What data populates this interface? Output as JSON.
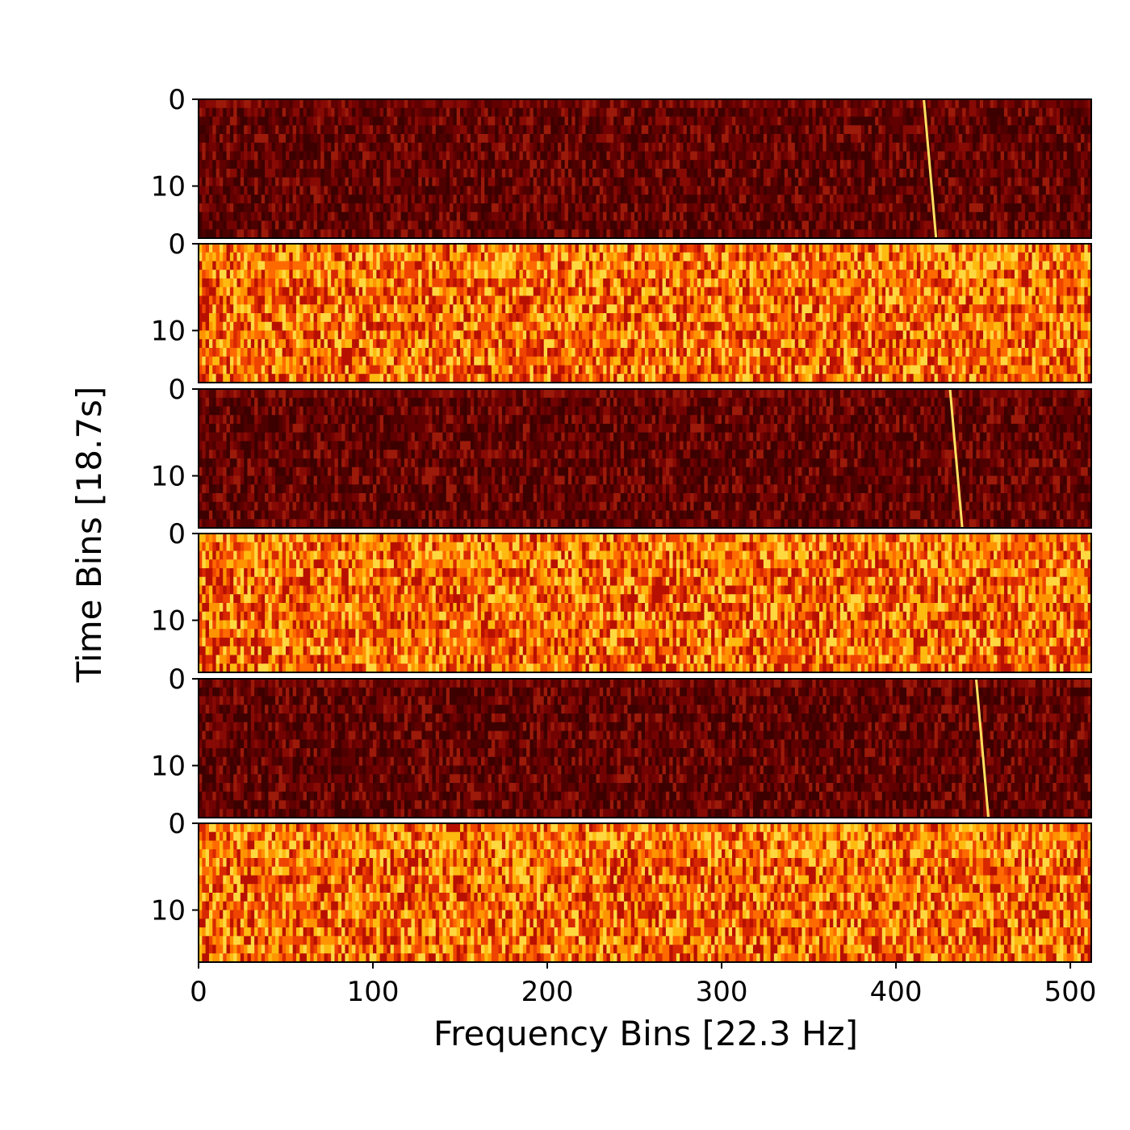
{
  "chart_data": {
    "type": "heatmap",
    "title": "",
    "xlabel": "Frequency Bins [22.3 Hz]",
    "ylabel": "Time Bins [18.7s]",
    "xlim": [
      0,
      512
    ],
    "ylim": [
      0,
      16
    ],
    "x_ticks": [
      0,
      100,
      200,
      300,
      400,
      500
    ],
    "y_ticks": [
      0,
      10
    ],
    "colormap": "hot",
    "panels": [
      {
        "name": "",
        "background": "dark",
        "signal": {
          "freq_start": 416,
          "freq_end": 423
        }
      },
      {
        "name": "",
        "background": "bright",
        "signal": null
      },
      {
        "name": "",
        "background": "dark",
        "signal": {
          "freq_start": 431,
          "freq_end": 438
        }
      },
      {
        "name": "",
        "background": "bright",
        "signal": null
      },
      {
        "name": "",
        "background": "dark",
        "signal": {
          "freq_start": 446,
          "freq_end": 453
        }
      },
      {
        "name": "",
        "background": "bright",
        "signal": null
      }
    ],
    "colors": {
      "dark_palette": [
        "#3d0000",
        "#4f0000",
        "#610000",
        "#730303",
        "#870a05",
        "#9c1a0a"
      ],
      "bright_palette": [
        "#b81000",
        "#d82800",
        "#ee4400",
        "#ff6a00",
        "#ff9400",
        "#ffba10",
        "#ffd840"
      ],
      "signal": "#ffe060"
    }
  }
}
